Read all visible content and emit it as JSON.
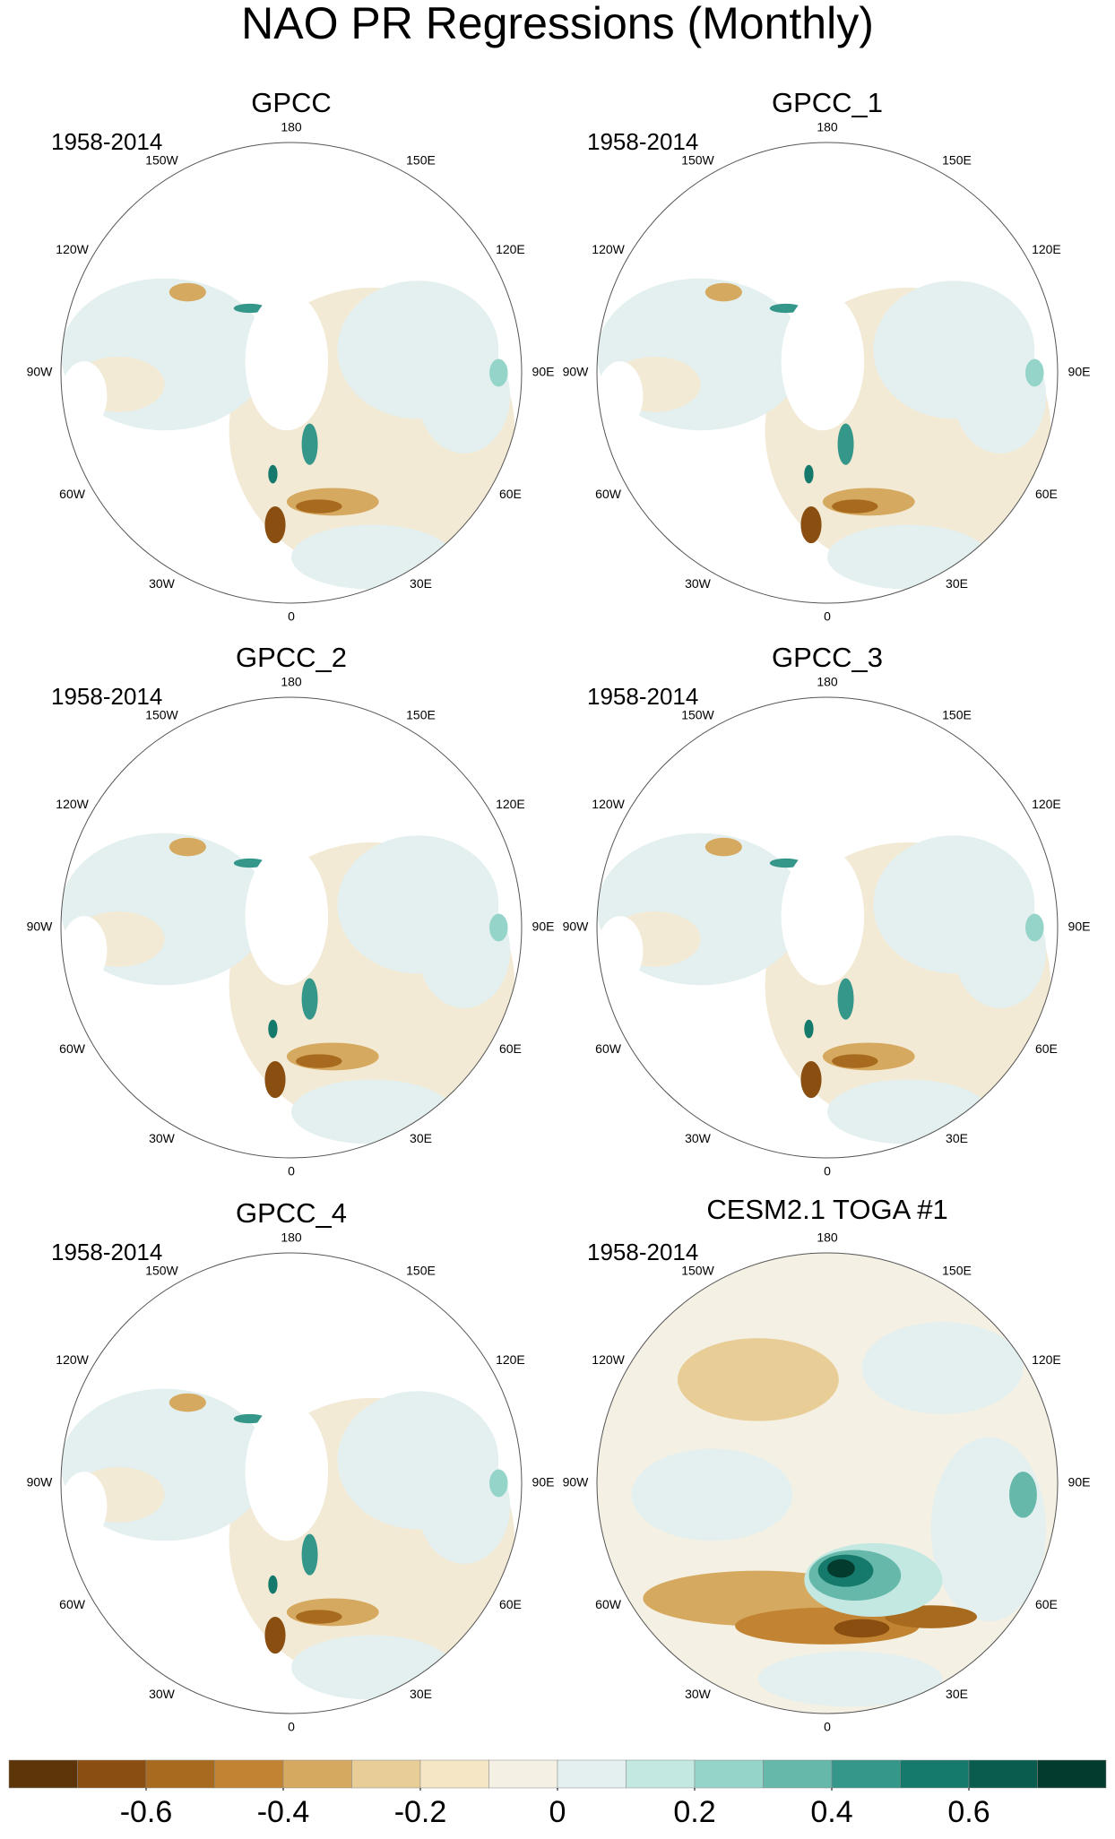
{
  "chart_data": {
    "type": "map",
    "title": "NAO PR Regressions (Monthly)",
    "panels": [
      {
        "title": "GPCC",
        "period": "1958-2014",
        "style": "obs"
      },
      {
        "title": "GPCC_1",
        "period": "1958-2014",
        "style": "obs"
      },
      {
        "title": "GPCC_2",
        "period": "1958-2014",
        "style": "obs"
      },
      {
        "title": "GPCC_3",
        "period": "1958-2014",
        "style": "obs"
      },
      {
        "title": "GPCC_4",
        "period": "1958-2014",
        "style": "obs"
      },
      {
        "title": "CESM2.1 TOGA #1",
        "period": "1958-2014",
        "style": "model"
      }
    ],
    "longitude_labels": [
      "180",
      "150E",
      "120E",
      "90E",
      "60E",
      "30E",
      "0",
      "30W",
      "60W",
      "90W",
      "120W",
      "150W"
    ],
    "colorbar": {
      "range": [
        -0.8,
        0.8
      ],
      "ticks": [
        -0.6,
        -0.4,
        -0.2,
        0,
        0.2,
        0.4,
        0.6
      ],
      "colors": [
        "#5e3509",
        "#8a4f10",
        "#a86a1e",
        "#c28432",
        "#d5a95f",
        "#e8cd97",
        "#f5e6c6",
        "#f5f0e4",
        "#e3f0ef",
        "#c3e8e2",
        "#95d5c9",
        "#65b8aa",
        "#35968a",
        "#157a6b",
        "#0a5c4e",
        "#033b2f"
      ]
    }
  }
}
